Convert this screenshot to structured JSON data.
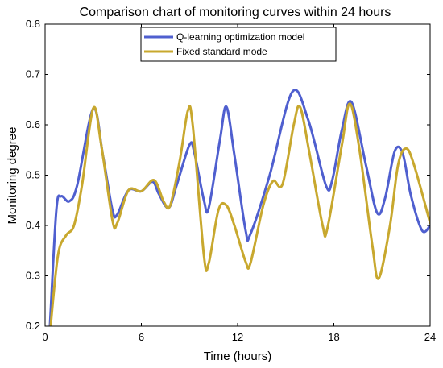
{
  "chart_data": {
    "type": "line",
    "title": "Comparison chart of monitoring curves within 24 hours",
    "xlabel": "Time (hours)",
    "ylabel": "Monitoring degree",
    "xlim": [
      0,
      24
    ],
    "ylim": [
      0.2,
      0.8
    ],
    "xticks": [
      0,
      6,
      12,
      18,
      24
    ],
    "yticks": [
      0.2,
      0.3,
      0.4,
      0.5,
      0.6,
      0.7,
      0.8
    ],
    "legend_position": "top-center",
    "grid": false,
    "series": [
      {
        "name": "Q-learning optimization model",
        "color": "#4f5fcf",
        "points": [
          [
            0.3,
            0.2
          ],
          [
            0.7,
            0.43
          ],
          [
            1.0,
            0.458
          ],
          [
            1.5,
            0.448
          ],
          [
            2.0,
            0.48
          ],
          [
            3.0,
            0.632
          ],
          [
            3.6,
            0.54
          ],
          [
            4.2,
            0.43
          ],
          [
            4.5,
            0.422
          ],
          [
            5.2,
            0.47
          ],
          [
            6.0,
            0.468
          ],
          [
            6.7,
            0.487
          ],
          [
            7.1,
            0.462
          ],
          [
            7.7,
            0.435
          ],
          [
            8.2,
            0.48
          ],
          [
            9.0,
            0.56
          ],
          [
            9.3,
            0.545
          ],
          [
            9.9,
            0.45
          ],
          [
            10.2,
            0.435
          ],
          [
            10.9,
            0.57
          ],
          [
            11.3,
            0.636
          ],
          [
            11.8,
            0.54
          ],
          [
            12.5,
            0.39
          ],
          [
            12.8,
            0.383
          ],
          [
            14.0,
            0.5
          ],
          [
            15.4,
            0.665
          ],
          [
            16.4,
            0.61
          ],
          [
            17.5,
            0.48
          ],
          [
            17.9,
            0.49
          ],
          [
            18.5,
            0.59
          ],
          [
            19.1,
            0.645
          ],
          [
            20.0,
            0.52
          ],
          [
            20.7,
            0.425
          ],
          [
            21.2,
            0.455
          ],
          [
            21.8,
            0.548
          ],
          [
            22.3,
            0.542
          ],
          [
            22.8,
            0.46
          ],
          [
            23.5,
            0.39
          ],
          [
            24.0,
            0.4
          ]
        ]
      },
      {
        "name": "Fixed standard mode",
        "color": "#c8a82e",
        "points": [
          [
            0.3,
            0.185
          ],
          [
            0.8,
            0.34
          ],
          [
            1.3,
            0.38
          ],
          [
            1.8,
            0.4
          ],
          [
            2.3,
            0.48
          ],
          [
            3.0,
            0.633
          ],
          [
            3.5,
            0.56
          ],
          [
            4.2,
            0.41
          ],
          [
            4.5,
            0.405
          ],
          [
            5.2,
            0.47
          ],
          [
            6.0,
            0.468
          ],
          [
            6.8,
            0.49
          ],
          [
            7.4,
            0.447
          ],
          [
            7.8,
            0.44
          ],
          [
            8.4,
            0.53
          ],
          [
            8.9,
            0.628
          ],
          [
            9.2,
            0.6
          ],
          [
            9.9,
            0.34
          ],
          [
            10.2,
            0.325
          ],
          [
            10.8,
            0.43
          ],
          [
            11.3,
            0.44
          ],
          [
            11.8,
            0.4
          ],
          [
            12.5,
            0.328
          ],
          [
            12.8,
            0.325
          ],
          [
            13.6,
            0.44
          ],
          [
            14.2,
            0.488
          ],
          [
            14.8,
            0.482
          ],
          [
            15.5,
            0.6
          ],
          [
            15.9,
            0.635
          ],
          [
            16.5,
            0.54
          ],
          [
            17.3,
            0.4
          ],
          [
            17.6,
            0.395
          ],
          [
            18.5,
            0.56
          ],
          [
            19.0,
            0.642
          ],
          [
            19.6,
            0.55
          ],
          [
            20.4,
            0.36
          ],
          [
            20.8,
            0.295
          ],
          [
            21.5,
            0.4
          ],
          [
            22.0,
            0.52
          ],
          [
            22.5,
            0.553
          ],
          [
            23.0,
            0.52
          ],
          [
            24.0,
            0.405
          ]
        ]
      }
    ]
  }
}
